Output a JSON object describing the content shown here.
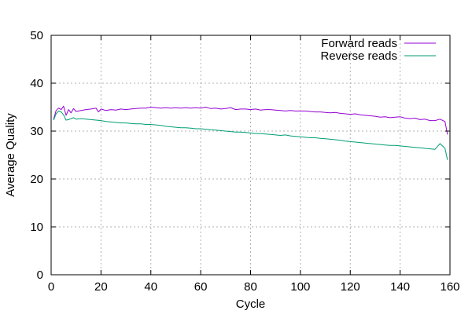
{
  "chart_data": {
    "type": "line",
    "title": "",
    "xlabel": "Cycle",
    "ylabel": "Average Quality",
    "xlim": [
      0,
      160
    ],
    "ylim": [
      0,
      50
    ],
    "xticks": [
      0,
      20,
      40,
      60,
      80,
      100,
      120,
      140,
      160
    ],
    "yticks": [
      0,
      10,
      20,
      30,
      40,
      50
    ],
    "grid": true,
    "legend_position": "top-right",
    "series": [
      {
        "name": "Forward reads",
        "color": "#9400d3",
        "x": [
          1,
          2,
          3,
          4,
          5,
          6,
          7,
          8,
          9,
          10,
          12,
          14,
          16,
          18,
          19,
          20,
          22,
          24,
          26,
          28,
          30,
          32,
          34,
          36,
          38,
          40,
          42,
          44,
          46,
          48,
          50,
          52,
          54,
          56,
          58,
          60,
          62,
          64,
          66,
          68,
          70,
          72,
          74,
          76,
          78,
          80,
          82,
          84,
          86,
          88,
          90,
          92,
          94,
          96,
          98,
          100,
          102,
          104,
          106,
          108,
          110,
          112,
          114,
          116,
          118,
          120,
          122,
          124,
          126,
          128,
          130,
          132,
          134,
          136,
          138,
          140,
          142,
          144,
          146,
          148,
          150,
          152,
          154,
          156,
          158,
          159
        ],
        "y": [
          32.5,
          34.3,
          34.8,
          34.5,
          35.2,
          33.3,
          34.5,
          33.8,
          34.7,
          34.1,
          34.3,
          34.5,
          34.6,
          34.8,
          34.0,
          34.6,
          34.3,
          34.5,
          34.4,
          34.6,
          34.5,
          34.6,
          34.7,
          34.8,
          34.8,
          35.0,
          34.9,
          34.8,
          34.9,
          34.8,
          34.9,
          34.8,
          34.9,
          34.8,
          34.9,
          34.8,
          35.0,
          34.7,
          34.8,
          34.6,
          34.7,
          34.9,
          34.5,
          34.6,
          34.6,
          34.5,
          34.6,
          34.4,
          34.5,
          34.5,
          34.4,
          34.3,
          34.2,
          34.3,
          34.2,
          34.2,
          34.2,
          34.1,
          34.0,
          34.0,
          33.9,
          33.8,
          33.9,
          33.7,
          33.6,
          33.5,
          33.6,
          33.4,
          33.3,
          33.2,
          33.1,
          32.9,
          33.0,
          32.8,
          32.9,
          33.0,
          32.7,
          32.6,
          32.7,
          32.4,
          32.5,
          32.2,
          32.2,
          32.5,
          32.0,
          29.3
        ]
      },
      {
        "name": "Reverse reads",
        "color": "#009e73",
        "x": [
          1,
          2,
          3,
          4,
          5,
          6,
          7,
          8,
          9,
          10,
          12,
          14,
          16,
          18,
          20,
          22,
          24,
          26,
          28,
          30,
          32,
          34,
          36,
          38,
          40,
          42,
          44,
          46,
          48,
          50,
          52,
          54,
          56,
          58,
          60,
          62,
          64,
          66,
          68,
          70,
          72,
          74,
          76,
          78,
          80,
          82,
          84,
          86,
          88,
          90,
          92,
          94,
          96,
          98,
          100,
          102,
          104,
          106,
          108,
          110,
          112,
          114,
          116,
          118,
          120,
          122,
          124,
          126,
          128,
          130,
          132,
          134,
          136,
          138,
          140,
          142,
          144,
          146,
          148,
          150,
          152,
          154,
          156,
          158,
          159
        ],
        "y": [
          32.3,
          33.6,
          34.2,
          34.0,
          33.4,
          32.3,
          32.4,
          32.6,
          32.8,
          32.5,
          32.6,
          32.5,
          32.4,
          32.3,
          32.2,
          32.0,
          31.9,
          31.8,
          31.7,
          31.7,
          31.6,
          31.5,
          31.5,
          31.4,
          31.4,
          31.3,
          31.2,
          31.0,
          30.9,
          30.8,
          30.7,
          30.7,
          30.6,
          30.5,
          30.5,
          30.4,
          30.3,
          30.2,
          30.1,
          30.0,
          29.9,
          29.8,
          29.8,
          29.7,
          29.6,
          29.5,
          29.5,
          29.4,
          29.3,
          29.2,
          29.1,
          29.2,
          29.0,
          28.9,
          28.8,
          28.7,
          28.6,
          28.6,
          28.5,
          28.4,
          28.3,
          28.2,
          28.1,
          27.9,
          27.8,
          27.7,
          27.6,
          27.5,
          27.4,
          27.3,
          27.2,
          27.1,
          27.0,
          27.0,
          26.9,
          26.8,
          26.7,
          26.6,
          26.5,
          26.4,
          26.3,
          26.2,
          27.4,
          26.4,
          24.0
        ]
      }
    ]
  }
}
